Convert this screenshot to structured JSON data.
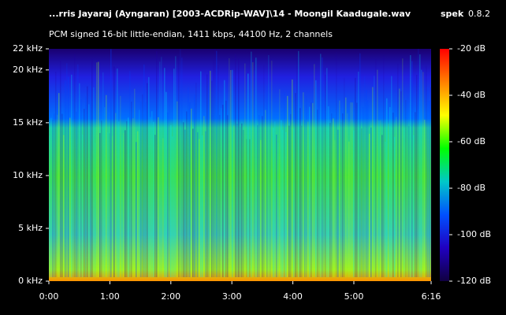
{
  "chart_data": {
    "type": "spectrogram",
    "title": "...rris Jayaraj (Ayngaran) [2003-ACDRip-WAV]\\14 - Moongil Kaadugale.wav",
    "app_name": "spek",
    "app_version": "0.8.2",
    "subtitle": "PCM signed 16-bit little-endian, 1411 kbps, 44100 Hz, 2 channels",
    "xlim": [
      0,
      376
    ],
    "xticks": [
      {
        "value": 0,
        "label": "0:00"
      },
      {
        "value": 60,
        "label": "1:00"
      },
      {
        "value": 120,
        "label": "2:00"
      },
      {
        "value": 180,
        "label": "3:00"
      },
      {
        "value": 240,
        "label": "4:00"
      },
      {
        "value": 300,
        "label": "5:00"
      },
      {
        "value": 376,
        "label": "6:16"
      }
    ],
    "ylim": [
      0,
      22
    ],
    "yticks": [
      {
        "value": 0,
        "label": "0 kHz"
      },
      {
        "value": 5,
        "label": "5 kHz"
      },
      {
        "value": 10,
        "label": "10 kHz"
      },
      {
        "value": 15,
        "label": "15 kHz"
      },
      {
        "value": 20,
        "label": "20 kHz"
      },
      {
        "value": 22,
        "label": "22 kHz"
      }
    ],
    "colorbar_lim": [
      -120,
      -20
    ],
    "colorbar_ticks": [
      {
        "value": -20,
        "label": "-20 dB"
      },
      {
        "value": -40,
        "label": "-40 dB"
      },
      {
        "value": -60,
        "label": "-60 dB"
      },
      {
        "value": -80,
        "label": "-80 dB"
      },
      {
        "value": -100,
        "label": "-100 dB"
      },
      {
        "value": -120,
        "label": "-120 dB"
      }
    ],
    "colormap": [
      "#ff0000",
      "#ff8000",
      "#ffff00",
      "#00ff00",
      "#00c8c8",
      "#0050ff",
      "#2000c0",
      "#100040"
    ]
  }
}
